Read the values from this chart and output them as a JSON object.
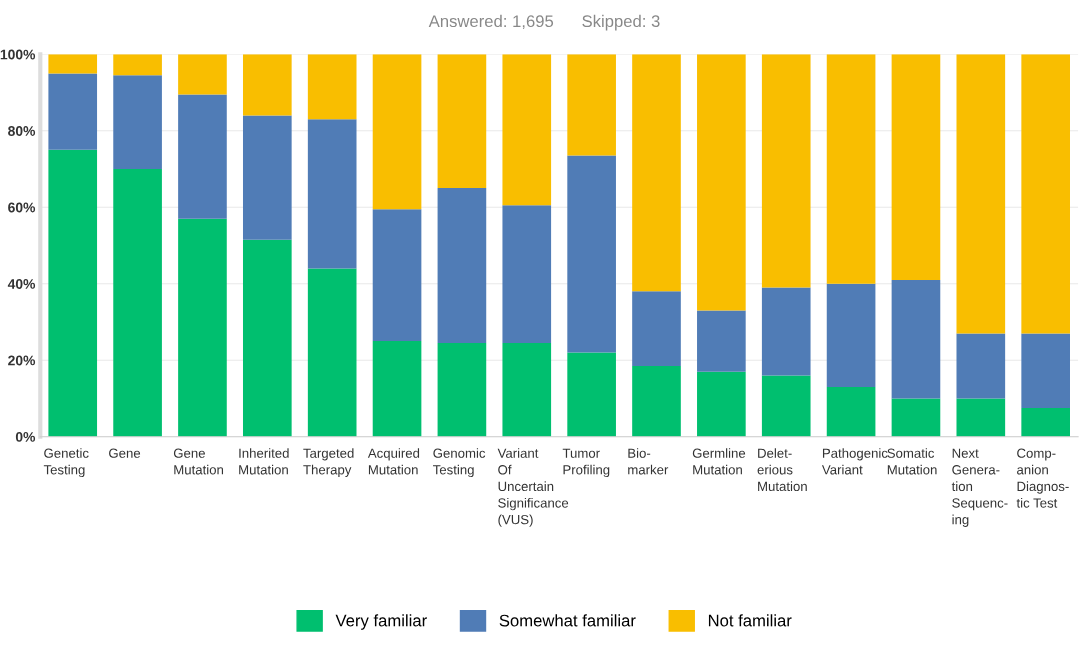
{
  "chart_data": {
    "type": "bar",
    "stacked": true,
    "annotations": [
      "Answered: 1,695",
      "Skipped: 3"
    ],
    "categories": [
      "Genetic\nTesting",
      "Gene",
      "Gene\nMutation",
      "Inherited\nMutation",
      "Targeted\nTherapy",
      "Acquired\nMutation",
      "Genomic\nTesting",
      "Variant\nOf\nUncertain\nSignificance\n(VUS)",
      "Tumor\nProfiling",
      "Bio-\nmarker",
      "Germline\nMutation",
      "Delet-\nerious\nMutation",
      "Pathogenic\nVariant",
      "Somatic\nMutation",
      "Next\nGenera-\ntion\nSequenc-\ning",
      "Comp-\nanion\nDiagnos-\ntic Test"
    ],
    "series": [
      {
        "name": "Very familiar",
        "color": "#00bf6f",
        "values": [
          75,
          70,
          57,
          51.5,
          44,
          25,
          24.5,
          24.5,
          22,
          18.5,
          17,
          16,
          13,
          10,
          10,
          7.5
        ]
      },
      {
        "name": "Somewhat familiar",
        "color": "#507cb6",
        "values": [
          20,
          24.5,
          32.5,
          32.5,
          39,
          34.5,
          40.5,
          36,
          51.5,
          19.5,
          16,
          23,
          27,
          31,
          17,
          19.5
        ]
      },
      {
        "name": "Not familiar",
        "color": "#f9be00",
        "values": [
          5,
          5.5,
          10.5,
          16,
          17,
          40.5,
          35,
          39.5,
          26.5,
          62,
          67,
          61,
          60,
          59,
          73,
          73
        ]
      }
    ],
    "ylim": [
      0,
      100
    ],
    "yticks": [
      {
        "value": 0,
        "label": "0%"
      },
      {
        "value": 20,
        "label": "20%"
      },
      {
        "value": 40,
        "label": "40%"
      },
      {
        "value": 60,
        "label": "60%"
      },
      {
        "value": 80,
        "label": "80%"
      },
      {
        "value": 100,
        "label": "100%"
      }
    ],
    "grid": "y",
    "legend": "bottom"
  }
}
